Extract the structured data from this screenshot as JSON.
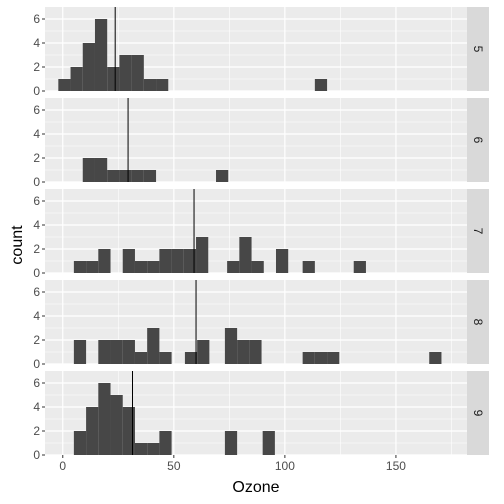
{
  "chart_data": {
    "type": "bar",
    "subtype": "faceted-histogram",
    "xlabel": "Ozone",
    "ylabel": "count",
    "xlim": [
      -8,
      182
    ],
    "ylim": [
      0,
      7
    ],
    "x_ticks": [
      0,
      50,
      100,
      150
    ],
    "y_ticks": [
      0,
      2,
      4,
      6
    ],
    "bin_width": 5.5,
    "grid": true,
    "colors": {
      "bar": "#474747",
      "panel": "#ebebeb",
      "grid": "#ffffff",
      "strip": "#d9d9d9",
      "mean_line": "#000000"
    },
    "facets": [
      {
        "label": "5",
        "mean": 23.6,
        "bins": [
          {
            "x0": -2,
            "count": 1
          },
          {
            "x0": 3.5,
            "count": 2
          },
          {
            "x0": 9,
            "count": 4
          },
          {
            "x0": 14.5,
            "count": 6
          },
          {
            "x0": 20,
            "count": 2
          },
          {
            "x0": 25.5,
            "count": 3
          },
          {
            "x0": 31,
            "count": 3
          },
          {
            "x0": 36.5,
            "count": 1
          },
          {
            "x0": 42,
            "count": 1
          },
          {
            "x0": 113.5,
            "count": 1
          }
        ]
      },
      {
        "label": "6",
        "mean": 29.4,
        "bins": [
          {
            "x0": 9,
            "count": 2
          },
          {
            "x0": 14.5,
            "count": 2
          },
          {
            "x0": 20,
            "count": 1
          },
          {
            "x0": 25.5,
            "count": 1
          },
          {
            "x0": 31,
            "count": 1
          },
          {
            "x0": 36.5,
            "count": 1
          },
          {
            "x0": 69,
            "count": 1
          }
        ]
      },
      {
        "label": "7",
        "mean": 59.1,
        "bins": [
          {
            "x0": 5,
            "count": 1
          },
          {
            "x0": 10.5,
            "count": 1
          },
          {
            "x0": 16,
            "count": 2
          },
          {
            "x0": 27,
            "count": 2
          },
          {
            "x0": 32.5,
            "count": 1
          },
          {
            "x0": 38,
            "count": 1
          },
          {
            "x0": 43.5,
            "count": 2
          },
          {
            "x0": 49,
            "count": 2
          },
          {
            "x0": 54.5,
            "count": 2
          },
          {
            "x0": 60,
            "count": 3
          },
          {
            "x0": 74,
            "count": 1
          },
          {
            "x0": 79.5,
            "count": 3
          },
          {
            "x0": 85,
            "count": 1
          },
          {
            "x0": 96,
            "count": 2
          },
          {
            "x0": 108,
            "count": 1
          },
          {
            "x0": 131,
            "count": 1
          }
        ]
      },
      {
        "label": "8",
        "mean": 60.0,
        "bins": [
          {
            "x0": 5,
            "count": 2
          },
          {
            "x0": 16,
            "count": 2
          },
          {
            "x0": 21.5,
            "count": 2
          },
          {
            "x0": 27,
            "count": 2
          },
          {
            "x0": 32.5,
            "count": 1
          },
          {
            "x0": 38,
            "count": 3
          },
          {
            "x0": 43.5,
            "count": 1
          },
          {
            "x0": 55,
            "count": 1
          },
          {
            "x0": 60.5,
            "count": 2
          },
          {
            "x0": 73,
            "count": 3
          },
          {
            "x0": 78.5,
            "count": 2
          },
          {
            "x0": 84,
            "count": 2
          },
          {
            "x0": 108,
            "count": 1
          },
          {
            "x0": 113.5,
            "count": 1
          },
          {
            "x0": 119,
            "count": 1
          },
          {
            "x0": 165,
            "count": 1
          }
        ]
      },
      {
        "label": "9",
        "mean": 31.4,
        "bins": [
          {
            "x0": 5,
            "count": 2
          },
          {
            "x0": 10.5,
            "count": 4
          },
          {
            "x0": 16,
            "count": 6
          },
          {
            "x0": 21.5,
            "count": 5
          },
          {
            "x0": 27,
            "count": 4
          },
          {
            "x0": 32.5,
            "count": 1
          },
          {
            "x0": 38,
            "count": 1
          },
          {
            "x0": 43.5,
            "count": 2
          },
          {
            "x0": 73,
            "count": 2
          },
          {
            "x0": 90,
            "count": 2
          }
        ]
      }
    ]
  }
}
